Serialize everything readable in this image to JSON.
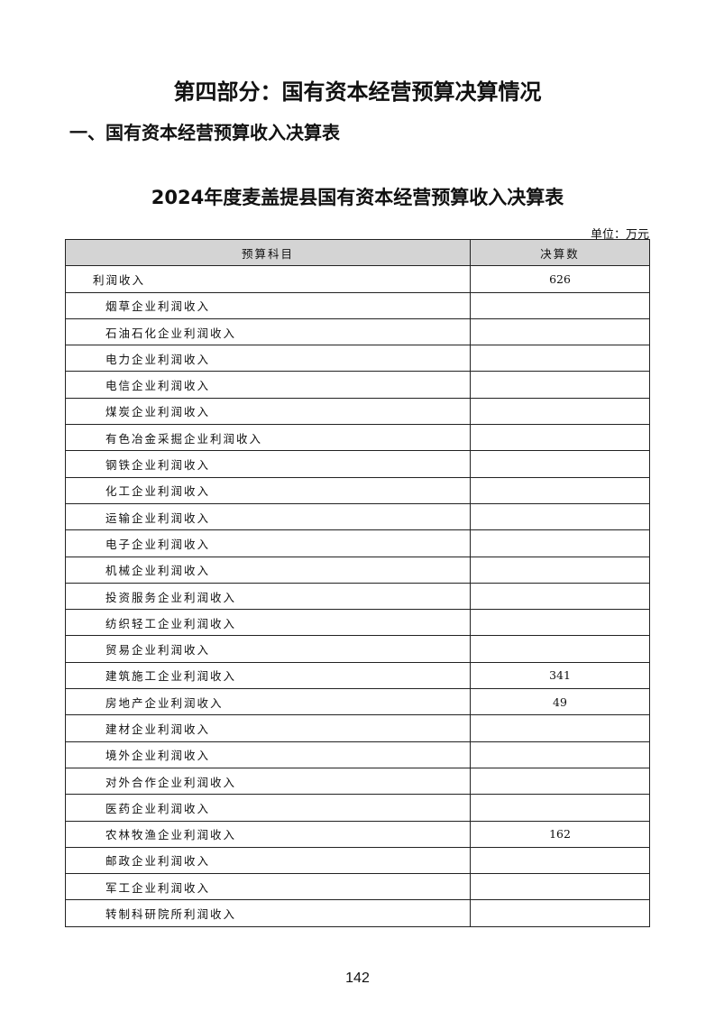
{
  "part_title": "第四部分：国有资本经营预算决算情况",
  "section_title": "一、国有资本经营预算收入决算表",
  "table_title": "2024年度麦盖提县国有资本经营预算收入决算表",
  "unit": "单位：万元",
  "table": {
    "headers": [
      "预算科目",
      "决算数"
    ],
    "rows": [
      {
        "name": "利润收入",
        "value": "626",
        "level": 0
      },
      {
        "name": "烟草企业利润收入",
        "value": "",
        "level": 1
      },
      {
        "name": "石油石化企业利润收入",
        "value": "",
        "level": 1
      },
      {
        "name": "电力企业利润收入",
        "value": "",
        "level": 1
      },
      {
        "name": "电信企业利润收入",
        "value": "",
        "level": 1
      },
      {
        "name": "煤炭企业利润收入",
        "value": "",
        "level": 1
      },
      {
        "name": "有色冶金采掘企业利润收入",
        "value": "",
        "level": 1
      },
      {
        "name": "钢铁企业利润收入",
        "value": "",
        "level": 1
      },
      {
        "name": "化工企业利润收入",
        "value": "",
        "level": 1
      },
      {
        "name": "运输企业利润收入",
        "value": "",
        "level": 1
      },
      {
        "name": "电子企业利润收入",
        "value": "",
        "level": 1
      },
      {
        "name": "机械企业利润收入",
        "value": "",
        "level": 1
      },
      {
        "name": "投资服务企业利润收入",
        "value": "",
        "level": 1
      },
      {
        "name": "纺织轻工企业利润收入",
        "value": "",
        "level": 1
      },
      {
        "name": "贸易企业利润收入",
        "value": "",
        "level": 1
      },
      {
        "name": "建筑施工企业利润收入",
        "value": "341",
        "level": 1
      },
      {
        "name": "房地产企业利润收入",
        "value": "49",
        "level": 1
      },
      {
        "name": "建材企业利润收入",
        "value": "",
        "level": 1
      },
      {
        "name": "境外企业利润收入",
        "value": "",
        "level": 1
      },
      {
        "name": "对外合作企业利润收入",
        "value": "",
        "level": 1
      },
      {
        "name": "医药企业利润收入",
        "value": "",
        "level": 1
      },
      {
        "name": "农林牧渔企业利润收入",
        "value": "162",
        "level": 1
      },
      {
        "name": "邮政企业利润收入",
        "value": "",
        "level": 1
      },
      {
        "name": "军工企业利润收入",
        "value": "",
        "level": 1
      },
      {
        "name": "转制科研院所利润收入",
        "value": "",
        "level": 1
      }
    ]
  },
  "page_number": "142"
}
